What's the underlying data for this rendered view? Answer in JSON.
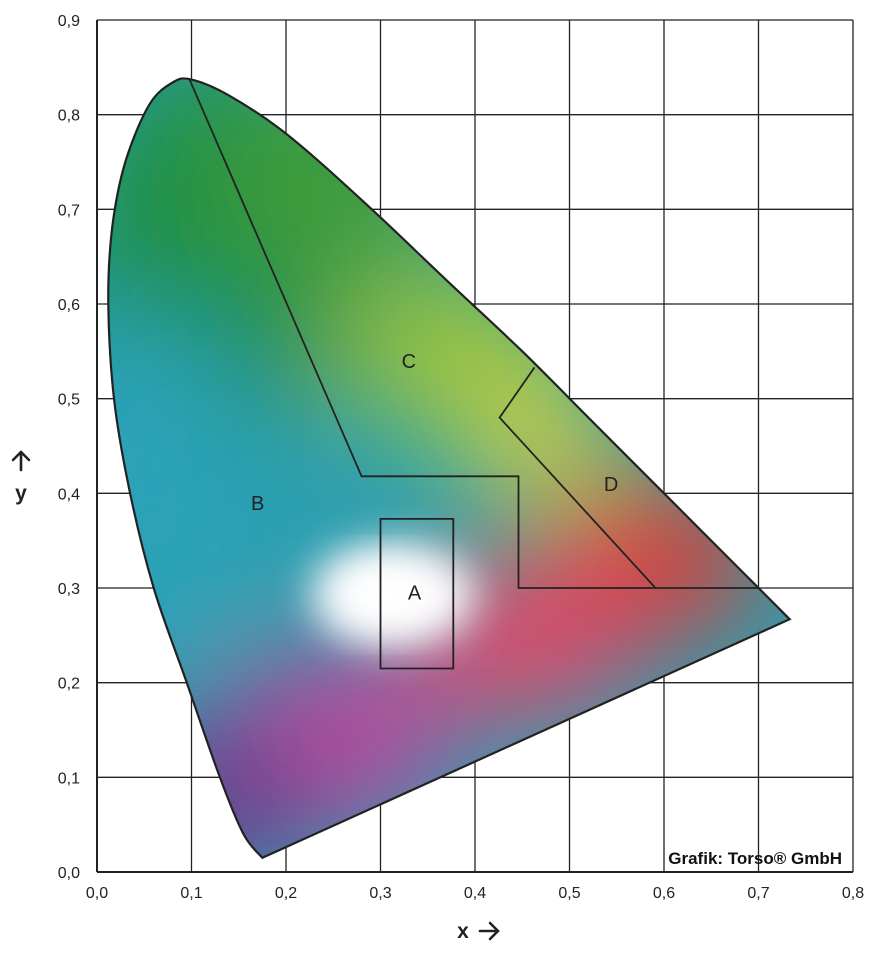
{
  "chart_data": {
    "type": "scatter",
    "title": "",
    "xlabel": "x",
    "ylabel": "y",
    "xlim": [
      0.0,
      0.8
    ],
    "ylim": [
      0.0,
      0.9
    ],
    "x_ticks": [
      "0,0",
      "0,1",
      "0,2",
      "0,3",
      "0,4",
      "0,5",
      "0,6",
      "0,7",
      "0,8"
    ],
    "y_ticks": [
      "0,0",
      "0,1",
      "0,2",
      "0,3",
      "0,4",
      "0,5",
      "0,6",
      "0,7",
      "0,8",
      "0,9"
    ],
    "grid": true,
    "locus": [
      [
        0.175,
        0.015
      ],
      [
        0.155,
        0.04
      ],
      [
        0.13,
        0.1
      ],
      [
        0.095,
        0.2
      ],
      [
        0.06,
        0.3
      ],
      [
        0.035,
        0.4
      ],
      [
        0.018,
        0.5
      ],
      [
        0.012,
        0.6
      ],
      [
        0.016,
        0.68
      ],
      [
        0.03,
        0.75
      ],
      [
        0.055,
        0.81
      ],
      [
        0.08,
        0.834
      ],
      [
        0.1,
        0.837
      ],
      [
        0.14,
        0.82
      ],
      [
        0.2,
        0.78
      ],
      [
        0.28,
        0.71
      ],
      [
        0.37,
        0.625
      ],
      [
        0.45,
        0.55
      ],
      [
        0.52,
        0.48
      ],
      [
        0.6,
        0.4
      ],
      [
        0.66,
        0.34
      ],
      [
        0.72,
        0.28
      ],
      [
        0.733,
        0.267
      ]
    ],
    "regions": [
      {
        "label": "A",
        "label_pos": [
          0.336,
          0.295
        ],
        "outline": [
          [
            0.3,
            0.215
          ],
          [
            0.3,
            0.373
          ],
          [
            0.377,
            0.373
          ],
          [
            0.377,
            0.215
          ]
        ]
      },
      {
        "label": "B",
        "label_pos": [
          0.17,
          0.39
        ],
        "outline": []
      },
      {
        "label": "C",
        "label_pos": [
          0.33,
          0.54
        ],
        "outline": [
          [
            0.098,
            0.837
          ],
          [
            0.28,
            0.418
          ],
          [
            0.446,
            0.418
          ],
          [
            0.446,
            0.3
          ],
          [
            0.7,
            0.3
          ]
        ]
      },
      {
        "label": "D",
        "label_pos": [
          0.544,
          0.41
        ],
        "outline": [
          [
            0.463,
            0.533
          ],
          [
            0.426,
            0.48
          ],
          [
            0.591,
            0.3
          ]
        ]
      }
    ],
    "credit": "Grafik: Torso® GmbH"
  }
}
